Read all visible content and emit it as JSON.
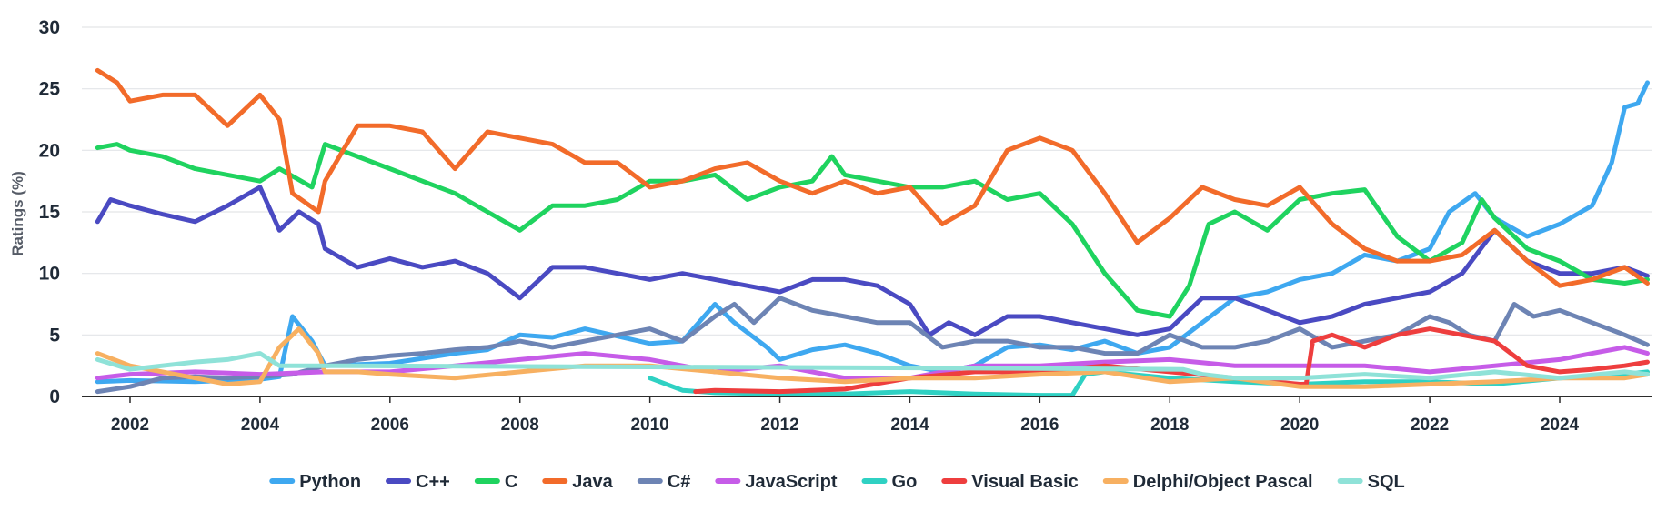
{
  "chart_data": {
    "type": "line",
    "title": "",
    "xlabel": "",
    "ylabel": "Ratings (%)",
    "ylim": [
      0,
      30
    ],
    "xlim": [
      2001.3,
      2025.5
    ],
    "yticks": [
      0,
      5,
      10,
      15,
      20,
      25,
      30
    ],
    "xticks": [
      "2002",
      "2004",
      "2006",
      "2008",
      "2010",
      "2012",
      "2014",
      "2016",
      "2018",
      "2020",
      "2022",
      "2024"
    ],
    "grid": "horizontal",
    "legend": "bottom-center",
    "series": [
      {
        "name": "Python",
        "color": "#3ea8f0",
        "x": [
          2001.5,
          2002,
          2003,
          2004,
          2004.3,
          2004.5,
          2004.8,
          2005,
          2006,
          2007,
          2007.5,
          2008,
          2008.5,
          2009,
          2010,
          2010.5,
          2011,
          2011.3,
          2011.8,
          2012,
          2012.5,
          2013,
          2013.5,
          2014,
          2014.5,
          2015,
          2015.5,
          2016,
          2016.5,
          2017,
          2017.5,
          2018,
          2018.5,
          2019,
          2019.5,
          2020,
          2020.5,
          2021,
          2021.5,
          2022,
          2022.3,
          2022.7,
          2023,
          2023.5,
          2024,
          2024.5,
          2024.8,
          2025,
          2025.2,
          2025.35
        ],
        "y": [
          1.2,
          1.3,
          1.2,
          1.4,
          1.6,
          6.5,
          4.5,
          2.5,
          2.7,
          3.5,
          3.8,
          5.0,
          4.8,
          5.5,
          4.3,
          4.5,
          7.5,
          6.0,
          4.0,
          3.0,
          3.8,
          4.2,
          3.5,
          2.5,
          2.0,
          2.5,
          4.0,
          4.2,
          3.8,
          4.5,
          3.5,
          4.0,
          6.0,
          8.0,
          8.5,
          9.5,
          10.0,
          11.5,
          11.0,
          12.0,
          15.0,
          16.5,
          14.5,
          13.0,
          14.0,
          15.5,
          19.0,
          23.5,
          23.8,
          25.5
        ]
      },
      {
        "name": "C++",
        "color": "#4a4ac2",
        "x": [
          2001.5,
          2001.7,
          2002,
          2002.5,
          2003,
          2003.5,
          2004,
          2004.3,
          2004.6,
          2004.9,
          2005,
          2005.5,
          2006,
          2006.5,
          2007,
          2007.5,
          2008,
          2008.5,
          2009,
          2009.5,
          2010,
          2010.5,
          2011,
          2011.5,
          2012,
          2012.5,
          2013,
          2013.5,
          2014,
          2014.3,
          2014.6,
          2015,
          2015.5,
          2016,
          2016.5,
          2017,
          2017.5,
          2018,
          2018.5,
          2019,
          2019.5,
          2020,
          2020.5,
          2021,
          2021.5,
          2022,
          2022.5,
          2023,
          2023.5,
          2024,
          2024.5,
          2025,
          2025.35
        ],
        "y": [
          14.2,
          16,
          15.5,
          14.8,
          14.2,
          15.5,
          17,
          13.5,
          15,
          14,
          12,
          10.5,
          11.2,
          10.5,
          11,
          10,
          8,
          10.5,
          10.5,
          10,
          9.5,
          10,
          9.5,
          9,
          8.5,
          9.5,
          9.5,
          9,
          7.5,
          5,
          6,
          5,
          6.5,
          6.5,
          6,
          5.5,
          5,
          5.5,
          8,
          8,
          7,
          6,
          6.5,
          7.5,
          8,
          8.5,
          10,
          13.5,
          11,
          10,
          10,
          10.5,
          9.8
        ]
      },
      {
        "name": "C",
        "color": "#1fd35f",
        "x": [
          2001.5,
          2001.8,
          2002,
          2002.5,
          2003,
          2003.5,
          2004,
          2004.3,
          2004.8,
          2005,
          2005.5,
          2006,
          2006.5,
          2007,
          2007.5,
          2008,
          2008.5,
          2009,
          2009.5,
          2010,
          2010.5,
          2011,
          2011.5,
          2012,
          2012.5,
          2012.8,
          2013,
          2013.5,
          2014,
          2014.5,
          2015,
          2015.5,
          2016,
          2016.5,
          2017,
          2017.5,
          2018,
          2018.3,
          2018.6,
          2019,
          2019.5,
          2020,
          2020.5,
          2021,
          2021.5,
          2022,
          2022.5,
          2022.8,
          2023,
          2023.5,
          2024,
          2024.5,
          2025,
          2025.35
        ],
        "y": [
          20.2,
          20.5,
          20.0,
          19.5,
          18.5,
          18.0,
          17.5,
          18.5,
          17.0,
          20.5,
          19.5,
          18.5,
          17.5,
          16.5,
          15.0,
          13.5,
          15.5,
          15.5,
          16.0,
          17.5,
          17.5,
          18.0,
          16.0,
          17.0,
          17.5,
          19.5,
          18.0,
          17.5,
          17.0,
          17.0,
          17.5,
          16.0,
          16.5,
          14.0,
          10.0,
          7.0,
          6.5,
          9.0,
          14.0,
          15.0,
          13.5,
          16.0,
          16.5,
          16.8,
          13.0,
          11.0,
          12.5,
          16.0,
          14.5,
          12.0,
          11.0,
          9.5,
          9.2,
          9.5
        ]
      },
      {
        "name": "Java",
        "color": "#f26b2a",
        "x": [
          2001.5,
          2001.8,
          2002,
          2002.5,
          2003,
          2003.5,
          2004,
          2004.3,
          2004.5,
          2004.9,
          2005,
          2005.5,
          2006,
          2006.5,
          2007,
          2007.5,
          2008,
          2008.5,
          2009,
          2009.5,
          2010,
          2010.5,
          2011,
          2011.5,
          2012,
          2012.5,
          2013,
          2013.5,
          2014,
          2014.5,
          2015,
          2015.5,
          2016,
          2016.5,
          2017,
          2017.5,
          2018,
          2018.5,
          2019,
          2019.5,
          2020,
          2020.5,
          2021,
          2021.5,
          2022,
          2022.5,
          2023,
          2023.5,
          2024,
          2024.5,
          2025,
          2025.35
        ],
        "y": [
          26.5,
          25.5,
          24.0,
          24.5,
          24.5,
          22.0,
          24.5,
          22.5,
          16.5,
          15.0,
          17.5,
          22.0,
          22.0,
          21.5,
          18.5,
          21.5,
          21.0,
          20.5,
          19.0,
          19.0,
          17.0,
          17.5,
          18.5,
          19.0,
          17.5,
          16.5,
          17.5,
          16.5,
          17.0,
          14.0,
          15.5,
          20.0,
          21.0,
          20.0,
          16.5,
          12.5,
          14.5,
          17.0,
          16.0,
          15.5,
          17.0,
          14.0,
          12.0,
          11.0,
          11.0,
          11.5,
          13.5,
          11.0,
          9.0,
          9.5,
          10.5,
          9.2
        ]
      },
      {
        "name": "C#",
        "color": "#6d84b4",
        "x": [
          2001.5,
          2002,
          2002.5,
          2003,
          2003.5,
          2004,
          2004.5,
          2005,
          2005.5,
          2006,
          2006.5,
          2007,
          2007.5,
          2008,
          2008.5,
          2009,
          2009.5,
          2010,
          2010.5,
          2011,
          2011.3,
          2011.6,
          2012,
          2012.5,
          2013,
          2013.5,
          2014,
          2014.5,
          2015,
          2015.5,
          2016,
          2016.5,
          2017,
          2017.5,
          2018,
          2018.5,
          2019,
          2019.5,
          2020,
          2020.5,
          2021,
          2021.5,
          2022,
          2022.3,
          2022.6,
          2023,
          2023.3,
          2023.6,
          2024,
          2024.5,
          2025,
          2025.35
        ],
        "y": [
          0.4,
          0.8,
          1.5,
          1.6,
          1.5,
          1.6,
          1.8,
          2.5,
          3.0,
          3.3,
          3.5,
          3.8,
          4.0,
          4.5,
          4.0,
          4.5,
          5.0,
          5.5,
          4.5,
          6.5,
          7.5,
          6.0,
          8.0,
          7.0,
          6.5,
          6.0,
          6.0,
          4.0,
          4.5,
          4.5,
          4.0,
          4.0,
          3.5,
          3.5,
          5.0,
          4.0,
          4.0,
          4.5,
          5.5,
          4.0,
          4.5,
          5.0,
          6.5,
          6.0,
          5.0,
          4.5,
          7.5,
          6.5,
          7.0,
          6.0,
          5.0,
          4.2
        ]
      },
      {
        "name": "JavaScript",
        "color": "#c65ce8",
        "x": [
          2001.5,
          2002,
          2003,
          2004,
          2005,
          2006,
          2007,
          2008,
          2009,
          2010,
          2011,
          2012,
          2013,
          2014,
          2015,
          2016,
          2017,
          2018,
          2019,
          2020,
          2021,
          2022,
          2023,
          2024,
          2024.5,
          2025,
          2025.35
        ],
        "y": [
          1.5,
          1.8,
          2.0,
          1.8,
          2.0,
          2.0,
          2.5,
          3.0,
          3.5,
          3.0,
          2.0,
          2.5,
          1.5,
          1.5,
          2.5,
          2.5,
          2.8,
          3.0,
          2.5,
          2.5,
          2.5,
          2.0,
          2.5,
          3.0,
          3.5,
          4.0,
          3.5
        ]
      },
      {
        "name": "Go",
        "color": "#2fd1c3",
        "x": [
          2010,
          2010.5,
          2011,
          2012,
          2013,
          2014,
          2015,
          2016,
          2016.5,
          2016.7,
          2017,
          2018,
          2019,
          2020,
          2021,
          2022,
          2023,
          2024,
          2025,
          2025.35
        ],
        "y": [
          1.5,
          0.5,
          0.3,
          0.2,
          0.2,
          0.4,
          0.2,
          0.1,
          0.1,
          1.8,
          2.0,
          1.5,
          1.2,
          1.0,
          1.2,
          1.2,
          1.0,
          1.5,
          1.8,
          2.0
        ]
      },
      {
        "name": "Visual Basic",
        "color": "#ee3e3e",
        "x": [
          2010.7,
          2011,
          2012,
          2013,
          2014,
          2015,
          2016,
          2017,
          2018,
          2019,
          2020,
          2020.1,
          2020.2,
          2020.5,
          2021,
          2021.5,
          2022,
          2022.5,
          2023,
          2023.5,
          2024,
          2024.5,
          2025,
          2025.35
        ],
        "y": [
          0.4,
          0.5,
          0.4,
          0.6,
          1.5,
          2.0,
          2.0,
          2.5,
          2.0,
          1.5,
          1.0,
          1.0,
          4.5,
          5.0,
          4.0,
          5.0,
          5.5,
          5.0,
          4.5,
          2.5,
          2.0,
          2.2,
          2.5,
          2.8
        ]
      },
      {
        "name": "Delphi/Object Pascal",
        "color": "#f7b061",
        "x": [
          2001.5,
          2002,
          2003,
          2003.5,
          2004,
          2004.3,
          2004.6,
          2004.9,
          2005,
          2005.5,
          2006,
          2007,
          2008,
          2009,
          2010,
          2011,
          2012,
          2013,
          2014,
          2015,
          2016,
          2017,
          2018,
          2019,
          2020,
          2021,
          2022,
          2023,
          2024,
          2025,
          2025.35
        ],
        "y": [
          3.5,
          2.5,
          1.5,
          1.0,
          1.2,
          4.0,
          5.5,
          3.5,
          2.0,
          2.0,
          1.8,
          1.5,
          2.0,
          2.5,
          2.5,
          2.0,
          1.5,
          1.2,
          1.5,
          1.5,
          1.8,
          2.0,
          1.2,
          1.5,
          0.8,
          0.8,
          1.0,
          1.2,
          1.5,
          1.5,
          1.8
        ]
      },
      {
        "name": "SQL",
        "color": "#8fe2d8",
        "x": [
          2001.5,
          2002,
          2003,
          2003.5,
          2004,
          2004.3,
          2005,
          2010,
          2015,
          2018.2,
          2018.5,
          2019,
          2020,
          2021,
          2022,
          2023,
          2024,
          2025,
          2025.35
        ],
        "y": [
          3.0,
          2.2,
          2.8,
          3.0,
          3.5,
          2.5,
          2.5,
          2.4,
          2.3,
          2.2,
          1.8,
          1.5,
          1.5,
          1.8,
          1.5,
          2.0,
          1.5,
          2.0,
          1.8
        ]
      }
    ]
  }
}
